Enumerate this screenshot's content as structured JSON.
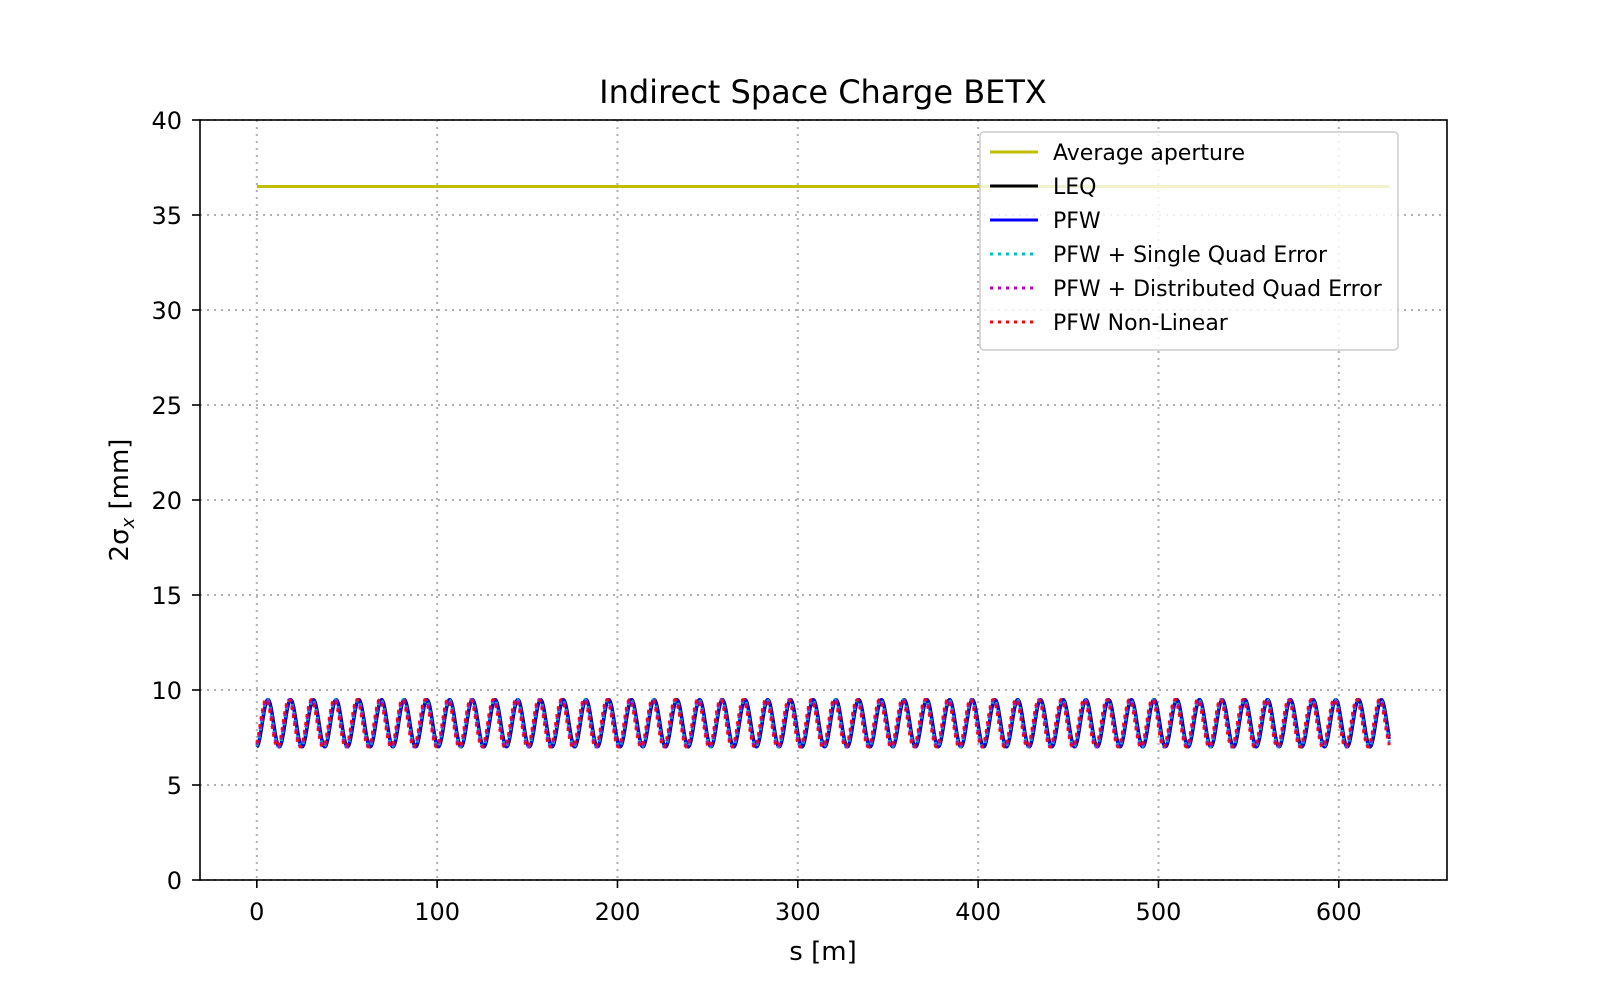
{
  "chart_data": {
    "type": "line",
    "title": "Indirect Space Charge BETX",
    "xlabel": "s [m]",
    "ylabel": "2σ",
    "ylabel_subscript": "x",
    "ylabel_unit": " [mm]",
    "xlim": [
      -31.5,
      660
    ],
    "ylim": [
      0,
      40
    ],
    "xticks": [
      0,
      100,
      200,
      300,
      400,
      500,
      600
    ],
    "yticks": [
      0,
      5,
      10,
      15,
      20,
      25,
      30,
      35,
      40
    ],
    "grid": true,
    "legend_position": "top-right",
    "signal": {
      "x_start": 0,
      "x_end": 628,
      "period": 12.6,
      "min": 7.0,
      "max": 9.5
    },
    "series": [
      {
        "name": "Average aperture",
        "color": "#bfbf00",
        "style": "solid",
        "type": "constant",
        "y": 36.5,
        "x": [
          0,
          628
        ]
      },
      {
        "name": "LEQ",
        "color": "#000000",
        "style": "solid",
        "type": "oscillation",
        "phase": 0.0
      },
      {
        "name": "PFW",
        "color": "#0000ff",
        "style": "solid",
        "type": "oscillation",
        "phase": 0.15
      },
      {
        "name": "PFW + Single Quad Error",
        "color": "#00bfbf",
        "style": "dotted",
        "type": "oscillation",
        "phase": 0.3
      },
      {
        "name": "PFW + Distributed Quad Error",
        "color": "#bf00bf",
        "style": "dotted",
        "type": "oscillation",
        "phase": 0.45
      },
      {
        "name": "PFW Non-Linear",
        "color": "#ff0000",
        "style": "dotted",
        "type": "oscillation",
        "phase": 0.6
      }
    ]
  }
}
